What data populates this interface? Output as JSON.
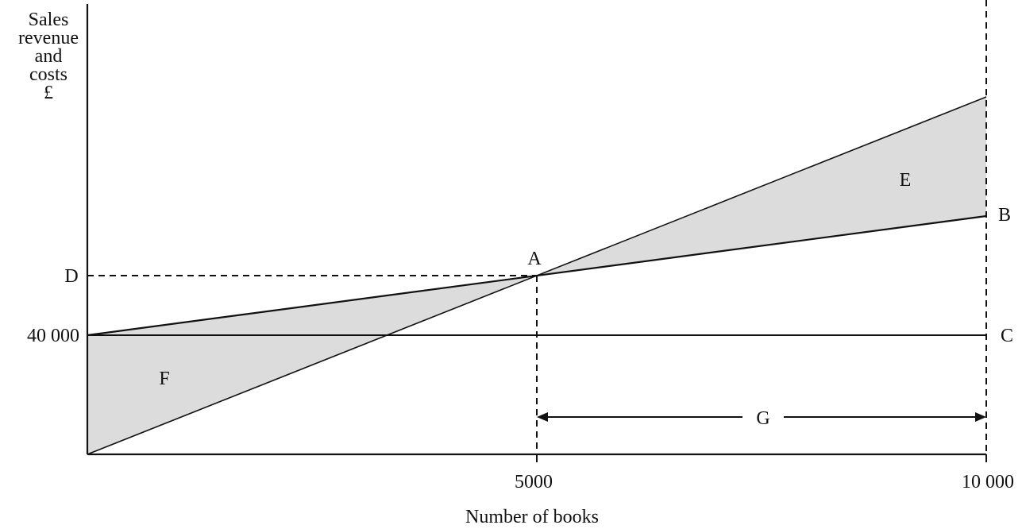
{
  "chart_data": {
    "type": "line",
    "title": "",
    "xlabel": "Number of books",
    "ylabel_lines": [
      "Sales",
      "revenue",
      "and",
      "costs",
      "£"
    ],
    "x_ticks": [
      {
        "value": 5000,
        "label": "5000"
      },
      {
        "value": 10000,
        "label": "10 000"
      }
    ],
    "y_ticks": [
      {
        "value": 40000,
        "label": "40 000"
      }
    ],
    "xlim": [
      0,
      10000
    ],
    "ylim": [
      0,
      110000
    ],
    "grid": false,
    "series": [
      {
        "x": [
          0,
          10000
        ],
        "y": [
          0,
          120000
        ]
      },
      {
        "x": [
          0,
          10000
        ],
        "y": [
          40000,
          80000
        ]
      },
      {
        "x": [
          0,
          10000
        ],
        "y": [
          40000,
          40000
        ]
      }
    ],
    "break_even": {
      "x": 5000,
      "y": 60000
    },
    "point_labels": {
      "A": "A",
      "B": "B",
      "C": "C",
      "D": "D",
      "E": "E",
      "F": "F",
      "G": "G"
    },
    "shaded_color": "#dcdcdd",
    "line_color": "#111111"
  }
}
